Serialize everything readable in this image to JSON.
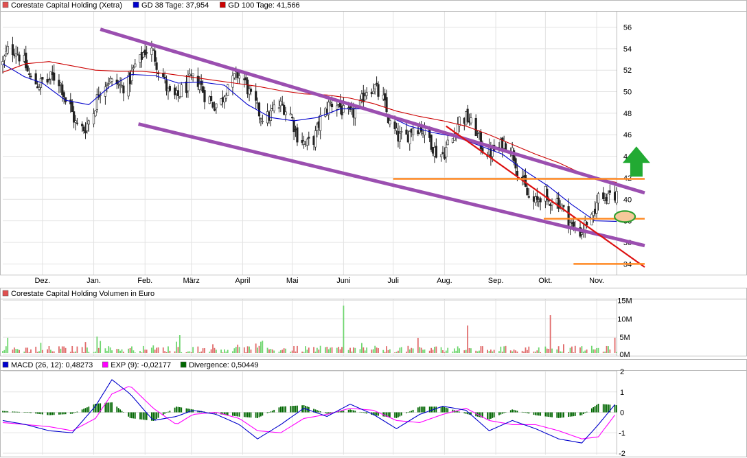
{
  "chart_data": [
    {
      "type": "line",
      "subtype": "candlestick-with-moving-averages",
      "legend": [
        {
          "label": "Corestate Capital Holding (Xetra)",
          "color": "#e05050"
        },
        {
          "label": "GD 38 Tage: 37,954",
          "color": "#0000cc"
        },
        {
          "label": "GD 100 Tage: 41,566",
          "color": "#cc0000"
        }
      ],
      "x_tick_labels": [
        "Dez.",
        "Jan.",
        "Feb.",
        "März",
        "April",
        "Mai",
        "Juni",
        "Juli",
        "Aug.",
        "Sep.",
        "Okt.",
        "Nov."
      ],
      "y_tick_labels": [
        "34",
        "36",
        "38",
        "40",
        "42",
        "44",
        "46",
        "48",
        "50",
        "52",
        "54",
        "56"
      ],
      "ylim": [
        33,
        57.5
      ],
      "grid": true,
      "series": [
        {
          "name": "Corestate Capital Holding (Xetra)",
          "kind": "candlestick",
          "color_up": "#30b030",
          "color_down": "#c04040"
        },
        {
          "name": "GD 38 Tage",
          "color": "#0000cc",
          "points": [
            [
              "2017-11-07",
              52.6
            ],
            [
              "2017-11-20",
              51.4
            ],
            [
              "2017-12-01",
              50.8
            ],
            [
              "2017-12-15",
              49.2
            ],
            [
              "2017-12-29",
              48.8
            ],
            [
              "2018-01-10",
              50.4
            ],
            [
              "2018-01-24",
              51.6
            ],
            [
              "2018-02-07",
              51.5
            ],
            [
              "2018-02-21",
              50.8
            ],
            [
              "2018-03-07",
              50.9
            ],
            [
              "2018-03-21",
              50.6
            ],
            [
              "2018-04-04",
              48.8
            ],
            [
              "2018-04-18",
              47.6
            ],
            [
              "2018-05-02",
              47.3
            ],
            [
              "2018-05-16",
              47.6
            ],
            [
              "2018-05-30",
              48.4
            ],
            [
              "2018-06-13",
              48.4
            ],
            [
              "2018-06-27",
              47.8
            ],
            [
              "2018-07-11",
              46.8
            ],
            [
              "2018-07-25",
              46.2
            ],
            [
              "2018-08-08",
              45.8
            ],
            [
              "2018-08-22",
              45.0
            ],
            [
              "2018-09-05",
              44.2
            ],
            [
              "2018-09-19",
              42.6
            ],
            [
              "2018-10-03",
              41.2
            ],
            [
              "2018-10-17",
              39.5
            ],
            [
              "2018-10-31",
              38.0
            ],
            [
              "2018-11-13",
              37.95
            ]
          ]
        },
        {
          "name": "GD 100 Tage",
          "color": "#cc0000",
          "points": [
            [
              "2017-11-07",
              51.8
            ],
            [
              "2017-11-21",
              52.6
            ],
            [
              "2017-12-05",
              52.8
            ],
            [
              "2017-12-19",
              52.4
            ],
            [
              "2018-01-02",
              52.0
            ],
            [
              "2018-01-16",
              51.9
            ],
            [
              "2018-01-30",
              51.9
            ],
            [
              "2018-02-13",
              51.7
            ],
            [
              "2018-02-27",
              51.4
            ],
            [
              "2018-03-13",
              51.1
            ],
            [
              "2018-03-27",
              50.8
            ],
            [
              "2018-04-10",
              50.5
            ],
            [
              "2018-04-24",
              50.1
            ],
            [
              "2018-05-08",
              49.8
            ],
            [
              "2018-05-22",
              49.7
            ],
            [
              "2018-06-05",
              49.4
            ],
            [
              "2018-06-19",
              48.9
            ],
            [
              "2018-07-03",
              48.2
            ],
            [
              "2018-07-17",
              47.7
            ],
            [
              "2018-07-31",
              47.3
            ],
            [
              "2018-08-14",
              46.8
            ],
            [
              "2018-08-28",
              46.0
            ],
            [
              "2018-09-11",
              45.1
            ],
            [
              "2018-09-25",
              44.2
            ],
            [
              "2018-10-09",
              43.4
            ],
            [
              "2018-10-23",
              42.4
            ],
            [
              "2018-11-06",
              41.8
            ],
            [
              "2018-11-13",
              41.57
            ]
          ]
        }
      ],
      "annotations": [
        {
          "kind": "trendline",
          "color": "#9b4fb0",
          "points": [
            [
              "2018-01-05",
              55.8
            ],
            [
              "2018-11-30",
              40.6
            ]
          ]
        },
        {
          "kind": "trendline",
          "color": "#9b4fb0",
          "points": [
            [
              "2018-01-28",
              47.0
            ],
            [
              "2018-11-30",
              35.7
            ]
          ]
        },
        {
          "kind": "trendline",
          "color": "#dd1111",
          "points": [
            [
              "2018-08-02",
              46.8
            ],
            [
              "2018-11-30",
              33.7
            ]
          ]
        },
        {
          "kind": "horizontal",
          "color": "#ff8822",
          "y": 41.9,
          "from": "2018-07-01",
          "to": "2018-11-30"
        },
        {
          "kind": "horizontal",
          "color": "#ff8822",
          "y": 38.2,
          "from": "2018-09-30",
          "to": "2018-11-30"
        },
        {
          "kind": "horizontal",
          "color": "#ff8822",
          "y": 34.0,
          "from": "2018-10-18",
          "to": "2018-11-30"
        },
        {
          "kind": "ellipse",
          "color": "#30a030",
          "fill": "#f5c89a",
          "x": "2018-11-18",
          "y": 38.4
        },
        {
          "kind": "arrow-up",
          "color": "#22aa33",
          "x": "2018-11-25",
          "y": 43.0
        }
      ]
    },
    {
      "type": "bar",
      "legend": [
        {
          "label": "Corestate Capital Holding Volumen in Euro",
          "color": "#e05050"
        }
      ],
      "y_tick_labels": [
        "0M",
        "5M",
        "10M",
        "15M"
      ],
      "ylim": [
        0,
        16
      ],
      "unit": "M EUR",
      "color_up": "#6fd66f",
      "color_down": "#e06a6a",
      "spikes": [
        {
          "date": "2018-06-01",
          "value": 13.2
        },
        {
          "date": "2018-08-15",
          "value": 7.8
        },
        {
          "date": "2018-10-04",
          "value": 10.6
        },
        {
          "date": "2018-02-22",
          "value": 5.2
        },
        {
          "date": "2018-01-03",
          "value": 4.8
        },
        {
          "date": "2018-11-12",
          "value": 4.5
        }
      ]
    },
    {
      "type": "line",
      "legend": [
        {
          "label": "MACD (26, 12): 0,48273",
          "color": "#0000cc"
        },
        {
          "label": "EXP (9): -0,02177",
          "color": "#ff00ff"
        },
        {
          "label": "Divergence: 0,50449",
          "color": "#006600"
        }
      ],
      "y_tick_labels": [
        "2",
        "1",
        "0",
        "-1",
        "-2"
      ],
      "ylim": [
        -2,
        2
      ],
      "series": [
        {
          "name": "MACD (26, 12)",
          "color": "#0000cc",
          "points": [
            [
              "2017-11-07",
              -0.4
            ],
            [
              "2017-11-21",
              -0.6
            ],
            [
              "2017-12-05",
              -0.9
            ],
            [
              "2017-12-19",
              -1.0
            ],
            [
              "2018-01-02",
              0.3
            ],
            [
              "2018-01-12",
              1.6
            ],
            [
              "2018-01-23",
              0.9
            ],
            [
              "2018-02-06",
              -0.4
            ],
            [
              "2018-02-20",
              -0.2
            ],
            [
              "2018-03-02",
              0.1
            ],
            [
              "2018-03-16",
              -0.1
            ],
            [
              "2018-03-30",
              -0.6
            ],
            [
              "2018-04-10",
              -1.3
            ],
            [
              "2018-04-24",
              -0.6
            ],
            [
              "2018-05-08",
              0.2
            ],
            [
              "2018-05-22",
              -0.2
            ],
            [
              "2018-06-05",
              0.4
            ],
            [
              "2018-06-19",
              -0.1
            ],
            [
              "2018-07-03",
              -0.8
            ],
            [
              "2018-07-17",
              -0.1
            ],
            [
              "2018-07-31",
              0.3
            ],
            [
              "2018-08-14",
              0.1
            ],
            [
              "2018-08-28",
              -0.9
            ],
            [
              "2018-09-11",
              -0.4
            ],
            [
              "2018-09-25",
              -0.8
            ],
            [
              "2018-10-09",
              -1.3
            ],
            [
              "2018-10-23",
              -1.5
            ],
            [
              "2018-11-02",
              -0.6
            ],
            [
              "2018-11-13",
              0.48
            ]
          ]
        },
        {
          "name": "EXP (9)",
          "color": "#ff00ff",
          "points": [
            [
              "2017-11-07",
              -0.5
            ],
            [
              "2017-11-21",
              -0.6
            ],
            [
              "2017-12-05",
              -0.7
            ],
            [
              "2017-12-19",
              -0.9
            ],
            [
              "2018-01-02",
              -0.3
            ],
            [
              "2018-01-12",
              0.9
            ],
            [
              "2018-01-23",
              1.3
            ],
            [
              "2018-02-06",
              0.2
            ],
            [
              "2018-02-20",
              -0.6
            ],
            [
              "2018-03-02",
              -0.1
            ],
            [
              "2018-03-16",
              0.0
            ],
            [
              "2018-03-30",
              -0.3
            ],
            [
              "2018-04-10",
              -0.9
            ],
            [
              "2018-04-24",
              -1.0
            ],
            [
              "2018-05-08",
              -0.3
            ],
            [
              "2018-05-22",
              -0.1
            ],
            [
              "2018-06-05",
              0.2
            ],
            [
              "2018-06-19",
              0.1
            ],
            [
              "2018-07-03",
              -0.4
            ],
            [
              "2018-07-17",
              -0.5
            ],
            [
              "2018-07-31",
              -0.1
            ],
            [
              "2018-08-14",
              0.2
            ],
            [
              "2018-08-28",
              -0.4
            ],
            [
              "2018-09-11",
              -0.6
            ],
            [
              "2018-09-25",
              -0.6
            ],
            [
              "2018-10-09",
              -0.9
            ],
            [
              "2018-10-23",
              -1.3
            ],
            [
              "2018-11-02",
              -1.2
            ],
            [
              "2018-11-13",
              -0.02
            ]
          ]
        },
        {
          "name": "Divergence",
          "kind": "histogram",
          "color": "#006600"
        }
      ]
    }
  ]
}
